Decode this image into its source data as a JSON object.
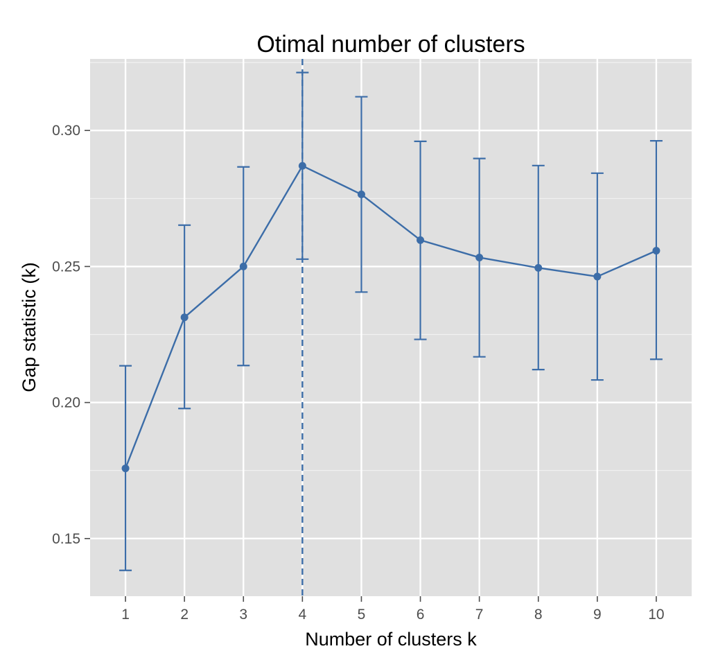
{
  "chart_data": {
    "type": "line",
    "title": "Otimal number of clusters",
    "xlabel": "Number of clusters k",
    "ylabel": "Gap statistic (k)",
    "x": [
      1,
      2,
      3,
      4,
      5,
      6,
      7,
      8,
      9,
      10
    ],
    "x_tick_labels": [
      "1",
      "2",
      "3",
      "4",
      "5",
      "6",
      "7",
      "8",
      "9",
      "10"
    ],
    "y_tick_values": [
      0.15,
      0.2,
      0.25,
      0.3
    ],
    "y_tick_labels": [
      "0.15",
      "0.20",
      "0.25",
      "0.30"
    ],
    "xlim": [
      0.4,
      10.6
    ],
    "ylim": [
      0.1288,
      0.3263
    ],
    "series": [
      {
        "values": [
          0.1758,
          0.2313,
          0.25,
          0.287,
          0.2765,
          0.2597,
          0.2533,
          0.2495,
          0.2463,
          0.2558
        ],
        "error_lower": [
          0.1383,
          0.1978,
          0.2136,
          0.2527,
          0.2406,
          0.2232,
          0.2168,
          0.2121,
          0.2083,
          0.2159
        ],
        "error_upper": [
          0.2135,
          0.2652,
          0.2866,
          0.3213,
          0.3124,
          0.296,
          0.2897,
          0.2871,
          0.2843,
          0.2962
        ],
        "color": "#3C6DA8"
      }
    ],
    "reference_line": {
      "x": 4,
      "style": "dashed",
      "color": "#3C6DA8"
    },
    "grid": true,
    "panel_background": "#E0E0E0",
    "grid_color": "#FFFFFF"
  }
}
